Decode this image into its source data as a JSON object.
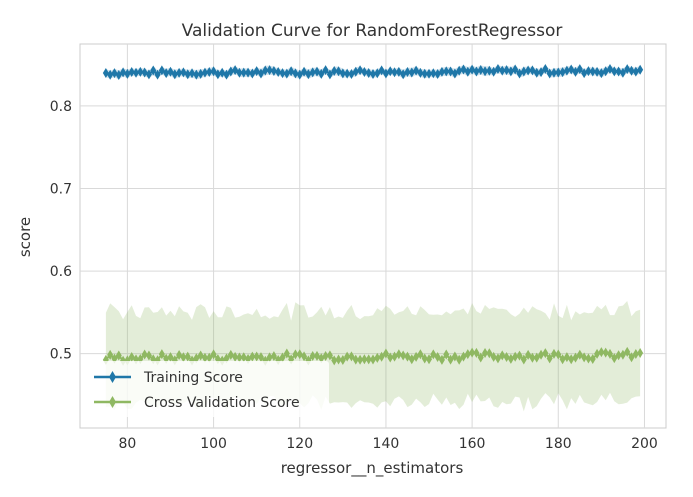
{
  "chart_data": {
    "type": "line",
    "title": "Validation Curve for RandomForestRegressor",
    "xlabel": "regressor__n_estimators",
    "ylabel": "score",
    "xlim": [
      69,
      205
    ],
    "ylim": [
      0.41,
      0.875
    ],
    "xticks": [
      80,
      100,
      120,
      140,
      160,
      180,
      200
    ],
    "yticks": [
      0.5,
      0.6,
      0.7,
      0.8
    ],
    "xtick_labels": [
      "80",
      "100",
      "120",
      "140",
      "160",
      "180",
      "200"
    ],
    "ytick_labels": [
      "0.5",
      "0.6",
      "0.7",
      "0.8"
    ],
    "grid": true,
    "legend_position": "lower-left",
    "x_range": [
      75,
      199
    ],
    "series": [
      {
        "name": "Training Score",
        "color": "#1f77a8",
        "marker": "diamond",
        "approx_mean": 0.84,
        "approx_band": [
          0.835,
          0.845
        ]
      },
      {
        "name": "Cross Validation Score",
        "color": "#8fb862",
        "marker": "diamond",
        "approx_mean": 0.495,
        "approx_band": [
          0.44,
          0.55
        ]
      }
    ]
  }
}
